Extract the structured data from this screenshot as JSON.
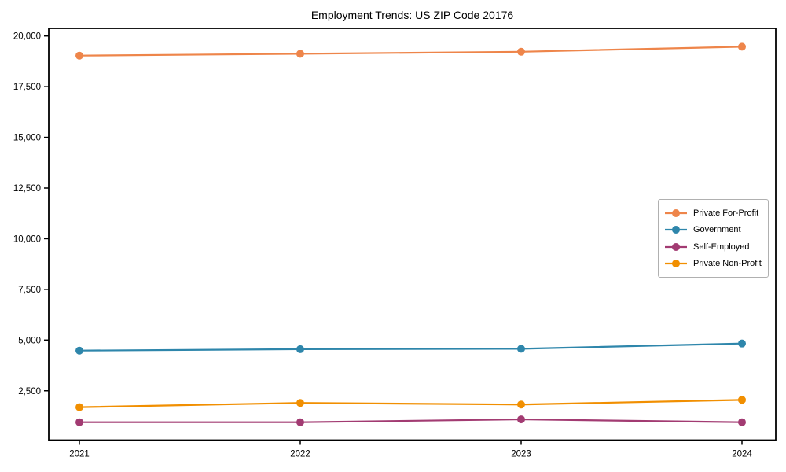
{
  "chart_data": {
    "type": "line",
    "title": "Employment Trends: US ZIP Code 20176",
    "x": [
      "2021",
      "2022",
      "2023",
      "2024"
    ],
    "series": [
      {
        "name": "Private For-Profit",
        "color": "#EE854A",
        "values": [
          19030,
          19120,
          19220,
          19470
        ]
      },
      {
        "name": "Government",
        "color": "#2E86AB",
        "values": [
          4480,
          4550,
          4570,
          4830
        ]
      },
      {
        "name": "Self-Employed",
        "color": "#A23B72",
        "values": [
          950,
          950,
          1090,
          950
        ]
      },
      {
        "name": "Private Non-Profit",
        "color": "#F18F01",
        "values": [
          1690,
          1900,
          1820,
          2050
        ]
      }
    ],
    "xlabel": "",
    "ylabel": "",
    "ylim": [
      65,
      20376
    ],
    "yticks": [
      2500,
      5000,
      7500,
      10000,
      12500,
      15000,
      17500,
      20000
    ],
    "ytick_labels": [
      "2,500",
      "5,000",
      "7,500",
      "10,000",
      "12,500",
      "15,000",
      "17,500",
      "20,000"
    ],
    "xtick_labels": [
      "2021",
      "2022",
      "2023",
      "2024"
    ],
    "grid": false,
    "legend_position": "center-right",
    "marker": "circle",
    "axis_color": "#000000"
  }
}
